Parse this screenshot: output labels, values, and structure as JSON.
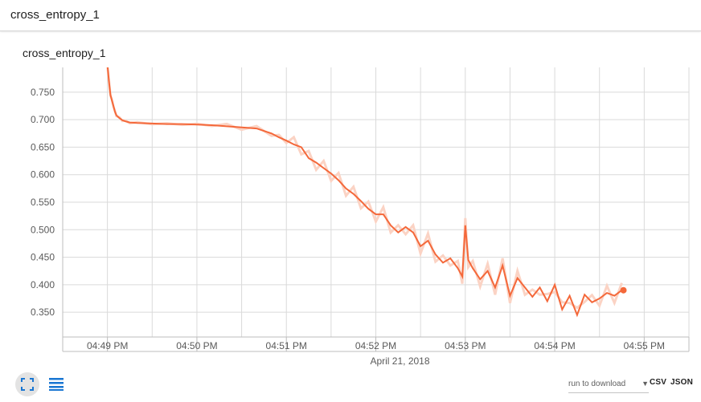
{
  "header": {
    "title": "cross_entropy_1"
  },
  "card": {
    "title": "cross_entropy_1"
  },
  "colors": {
    "line": "#f4683a",
    "line_raw": "#fbd3c4",
    "grid": "#dadada",
    "accent": "#1976d2"
  },
  "controls": {
    "fit_icon": "fit-to-domain-icon",
    "data_icon": "data-selection-icon",
    "download_label": "run to download",
    "csv_label": "CSV",
    "json_label": "JSON"
  },
  "chart_data": {
    "type": "line",
    "title": "cross_entropy_1",
    "xlabel": "April 21, 2018",
    "ylabel": "",
    "x_tick_labels": [
      "04:49 PM",
      "04:50 PM",
      "04:51 PM",
      "04:52 PM",
      "04:53 PM",
      "04:54 PM",
      "04:55 PM"
    ],
    "y_tick_labels": [
      "0.350",
      "0.400",
      "0.450",
      "0.500",
      "0.550",
      "0.600",
      "0.650",
      "0.700",
      "0.750"
    ],
    "ylim": [
      0.305,
      0.795
    ],
    "xlim": [
      "04:48:30 PM",
      "04:55:30 PM"
    ],
    "grid": true,
    "series": [
      {
        "x": [
          "04:49:00",
          "04:49:01",
          "04:49:02",
          "04:49:03",
          "04:49:04",
          "04:49:05",
          "04:49:06",
          "04:49:08",
          "04:49:10",
          "04:49:12",
          "04:49:15",
          "04:49:20",
          "04:49:30",
          "04:49:40",
          "04:49:50",
          "04:50:00",
          "04:50:10",
          "04:50:20",
          "04:50:30",
          "04:50:40",
          "04:50:50",
          "04:50:55",
          "04:51:00",
          "04:51:05",
          "04:51:10",
          "04:51:15",
          "04:51:20",
          "04:51:25",
          "04:51:30",
          "04:51:35",
          "04:51:40",
          "04:51:45",
          "04:51:50",
          "04:51:55",
          "04:52:00",
          "04:52:05",
          "04:52:10",
          "04:52:15",
          "04:52:20",
          "04:52:25",
          "04:52:30",
          "04:52:35",
          "04:52:40",
          "04:52:45",
          "04:52:50",
          "04:52:55",
          "04:52:58",
          "04:53:00",
          "04:53:02",
          "04:53:05",
          "04:53:10",
          "04:53:15",
          "04:53:20",
          "04:53:25",
          "04:53:30",
          "04:53:35",
          "04:53:40",
          "04:53:45",
          "04:53:50",
          "04:53:55",
          "04:54:00",
          "04:54:05",
          "04:54:10",
          "04:54:15",
          "04:54:20",
          "04:54:25",
          "04:54:30",
          "04:54:35",
          "04:54:40",
          "04:54:45"
        ],
        "values": [
          0.8,
          0.77,
          0.745,
          0.735,
          0.725,
          0.715,
          0.708,
          0.703,
          0.699,
          0.697,
          0.695,
          0.694,
          0.693,
          0.692,
          0.692,
          0.691,
          0.69,
          0.688,
          0.686,
          0.684,
          0.675,
          0.668,
          0.662,
          0.655,
          0.65,
          0.63,
          0.622,
          0.612,
          0.602,
          0.59,
          0.575,
          0.565,
          0.552,
          0.538,
          0.528,
          0.528,
          0.508,
          0.495,
          0.505,
          0.495,
          0.47,
          0.48,
          0.455,
          0.44,
          0.448,
          0.43,
          0.415,
          0.508,
          0.445,
          0.43,
          0.41,
          0.425,
          0.395,
          0.435,
          0.38,
          0.412,
          0.395,
          0.378,
          0.395,
          0.37,
          0.4,
          0.355,
          0.38,
          0.345,
          0.382,
          0.368,
          0.375,
          0.385,
          0.38,
          0.39
        ]
      }
    ]
  }
}
